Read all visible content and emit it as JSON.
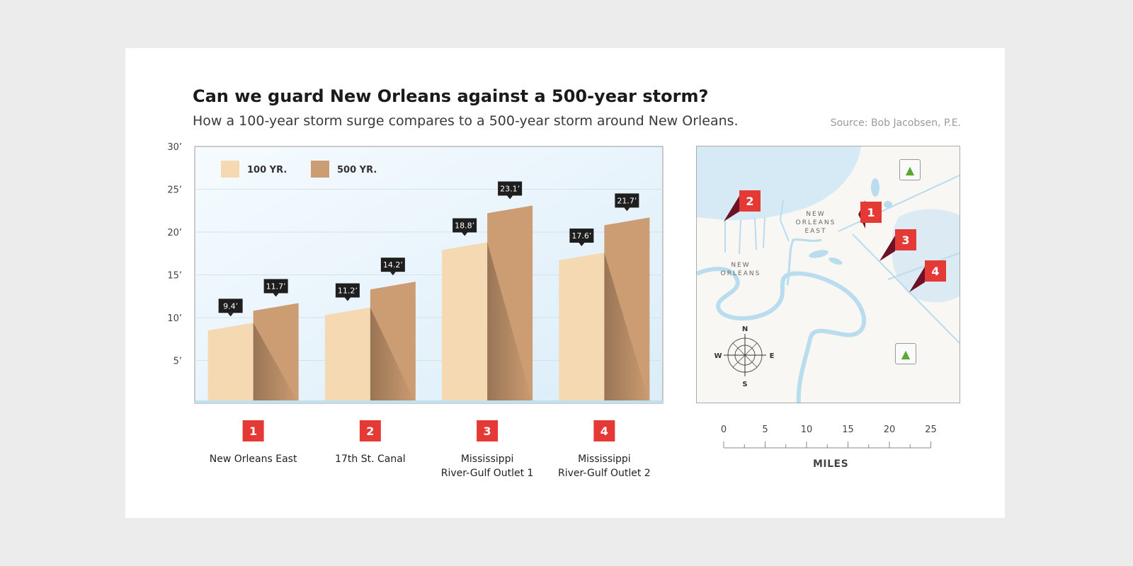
{
  "title": "Can we guard New Orleans against a 500-year storm?",
  "subtitle": "How a 100-year storm surge compares to a 500-year storm around New Orleans.",
  "source": "Source: Bob Jacobsen, P.E.",
  "colors": {
    "series_100": "#f5d9b3",
    "series_500": "#cc9c72",
    "marker_red": "#e53935",
    "water": "#d6eaf5",
    "river": "#b9dcee",
    "label_bg": "#1e1e1e",
    "tree_green": "#5aa832"
  },
  "chart_data": {
    "type": "bar",
    "title": "",
    "xlabel": "",
    "ylabel": "",
    "ylim": [
      0,
      30
    ],
    "y_ticks": [
      "5’",
      "10’",
      "15’",
      "20’",
      "25’",
      "30’"
    ],
    "y_tick_values": [
      5,
      10,
      15,
      20,
      25,
      30
    ],
    "grid": true,
    "legend_position": "top-left",
    "categories": [
      {
        "number": "1",
        "label_lines": [
          "New Orleans East"
        ]
      },
      {
        "number": "2",
        "label_lines": [
          "17th St. Canal"
        ]
      },
      {
        "number": "3",
        "label_lines": [
          "Mississippi",
          "River-Gulf Outlet 1"
        ]
      },
      {
        "number": "4",
        "label_lines": [
          "Mississippi",
          "River-Gulf Outlet 2"
        ]
      }
    ],
    "series": [
      {
        "name": "100 YR.",
        "values": [
          9.4,
          11.2,
          18.8,
          17.6
        ],
        "labels": [
          "9.4’",
          "11.2’",
          "18.8’",
          "17.6’"
        ]
      },
      {
        "name": "500 YR.",
        "values": [
          11.7,
          14.2,
          23.1,
          21.7
        ],
        "labels": [
          "11.7’",
          "14.2’",
          "23.1’",
          "21.7’"
        ]
      }
    ]
  },
  "map": {
    "places": {
      "new_orleans_east": "NEW ORLEANS EAST",
      "new_orleans": "NEW ORLEANS"
    },
    "markers": [
      "1",
      "2",
      "3",
      "4"
    ],
    "compass": {
      "n": "N",
      "s": "S",
      "e": "E",
      "w": "W"
    },
    "icons": [
      "tree-icon",
      "tree-icon"
    ],
    "tree_glyph": "▲"
  },
  "scale": {
    "ticks": [
      "0",
      "5",
      "10",
      "15",
      "20",
      "25"
    ],
    "unit": "MILES"
  }
}
